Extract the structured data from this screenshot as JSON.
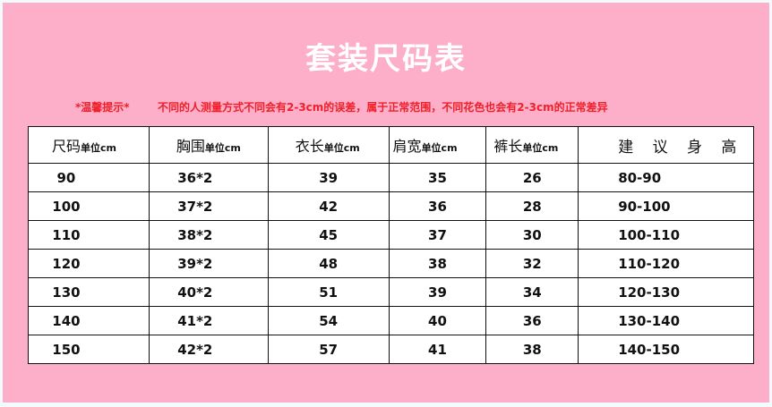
{
  "title": "套装尺码表",
  "tip_label": "*温馨提示*",
  "tip_text": "不同的人测量方式不同会有2-3cm的误差，属于正常范围，不同花色也会有2-3cm的正常差异",
  "colors": {
    "background": "#fdaec8",
    "title": "#ffffff",
    "tip": "#f0202a"
  },
  "headers": [
    {
      "name": "尺码",
      "unit": "单位cm"
    },
    {
      "name": "胸围",
      "unit": "单位cm"
    },
    {
      "name": "衣长",
      "unit": "单位cm"
    },
    {
      "name": "肩宽",
      "unit": "单位cm"
    },
    {
      "name": "裤长",
      "unit": "单位cm"
    },
    {
      "name": "建 议 身 高",
      "unit": ""
    }
  ],
  "rows": [
    [
      "90",
      "36*2",
      "39",
      "35",
      "26",
      "80-90"
    ],
    [
      "100",
      "37*2",
      "42",
      "36",
      "28",
      "90-100"
    ],
    [
      "110",
      "38*2",
      "45",
      "37",
      "30",
      "100-110"
    ],
    [
      "120",
      "39*2",
      "48",
      "38",
      "32",
      "110-120"
    ],
    [
      "130",
      "40*2",
      "51",
      "39",
      "34",
      "120-130"
    ],
    [
      "140",
      "41*2",
      "54",
      "40",
      "36",
      "130-140"
    ],
    [
      "150",
      "42*2",
      "57",
      "41",
      "38",
      "140-150"
    ]
  ]
}
